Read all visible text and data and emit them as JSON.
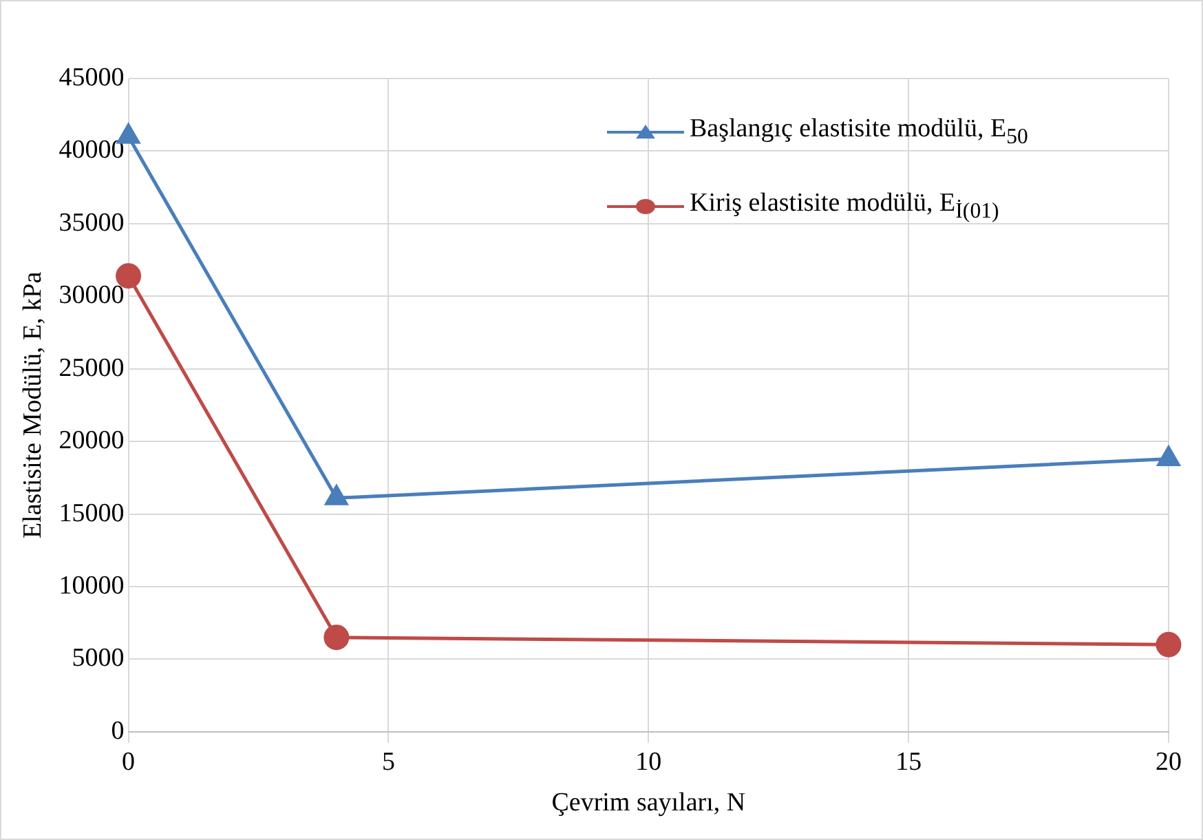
{
  "chart_data": {
    "type": "line",
    "xlabel": "Çevrim sayıları, N",
    "ylabel": "Elastisite Modülü, E, kPa",
    "x": [
      0,
      4,
      20
    ],
    "series": [
      {
        "name": "Başlangıç elastisite modülü, E$_{50}$",
        "color": "#4a7ebb",
        "marker": "triangle",
        "values": [
          41000,
          16100,
          18800
        ]
      },
      {
        "name": "Kiriş elastisite modülü, E$_{İ(01)}$",
        "color": "#be4b48",
        "marker": "circle",
        "values": [
          31400,
          6500,
          6000
        ]
      }
    ],
    "xlim": [
      0,
      20
    ],
    "xticks": [
      0,
      5,
      10,
      15,
      20
    ],
    "ylim": [
      0,
      45000
    ],
    "yticks": [
      0,
      5000,
      10000,
      15000,
      20000,
      25000,
      30000,
      35000,
      40000,
      45000
    ],
    "grid": true,
    "legend": "top right",
    "line_style": "solid"
  }
}
